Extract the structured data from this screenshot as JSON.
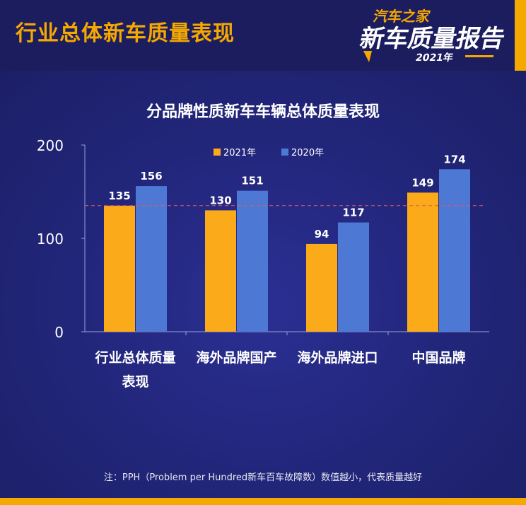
{
  "header": {
    "title": "行业总体新车质量表现",
    "logo": {
      "line1": "汽车之家",
      "line2": "新车质量报告",
      "year": "2021年"
    }
  },
  "colors": {
    "background": "#1b1f62",
    "accent": "#f5a800",
    "series_2021": "#fbaa19",
    "series_2020": "#4d79d4",
    "reference_line": "#e05a5a"
  },
  "chart_data": {
    "type": "bar",
    "title": "分品牌性质新车车辆总体质量表现",
    "categories": [
      "行业总体质量表现",
      "海外品牌国产",
      "海外品牌进口",
      "中国品牌"
    ],
    "category_lines": [
      [
        "行业总体质量",
        "表现"
      ],
      [
        "海外品牌国产"
      ],
      [
        "海外品牌进口"
      ],
      [
        "中国品牌"
      ]
    ],
    "series": [
      {
        "name": "2021年",
        "values": [
          135,
          130,
          94,
          149
        ]
      },
      {
        "name": "2020年",
        "values": [
          156,
          151,
          117,
          174
        ]
      }
    ],
    "ylim": [
      0,
      200
    ],
    "yticks": [
      0,
      100,
      200
    ],
    "reference_line": 135,
    "legend": "top-center",
    "grid": false
  },
  "footnote": "注：PPH（Problem per Hundred新车百车故障数）数值越小，代表质量越好"
}
